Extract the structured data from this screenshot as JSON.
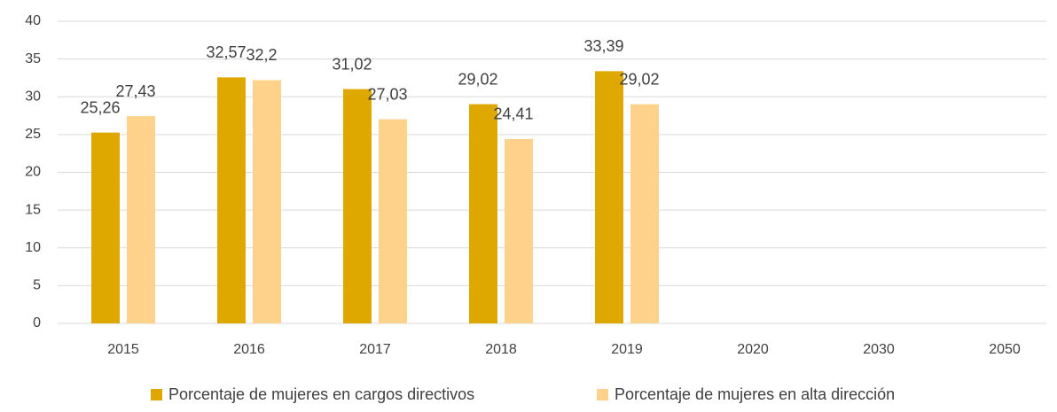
{
  "chart_data": {
    "type": "bar",
    "categories": [
      "2015",
      "2016",
      "2017",
      "2018",
      "2019",
      "2020",
      "2030",
      "2050"
    ],
    "series": [
      {
        "name": "Porcentaje de mujeres en cargos directivos",
        "color": "#dfa800",
        "values": [
          25.26,
          32.57,
          31.02,
          29.02,
          33.39,
          null,
          null,
          null
        ],
        "value_labels": [
          "25,26",
          "32,57",
          "31,02",
          "29,02",
          "33,39",
          null,
          null,
          null
        ]
      },
      {
        "name": "Porcentaje de mujeres en alta dirección",
        "color": "#fed28a",
        "values": [
          27.43,
          32.2,
          27.03,
          24.41,
          29.02,
          null,
          null,
          null
        ],
        "value_labels": [
          "27,43",
          "32,2",
          "27,03",
          "24,41",
          "29,02",
          null,
          null,
          null
        ]
      }
    ],
    "ylim": [
      0,
      40
    ],
    "yticks": [
      0,
      5,
      10,
      15,
      20,
      25,
      30,
      35,
      40
    ],
    "grid": true,
    "legend": "bottom"
  }
}
